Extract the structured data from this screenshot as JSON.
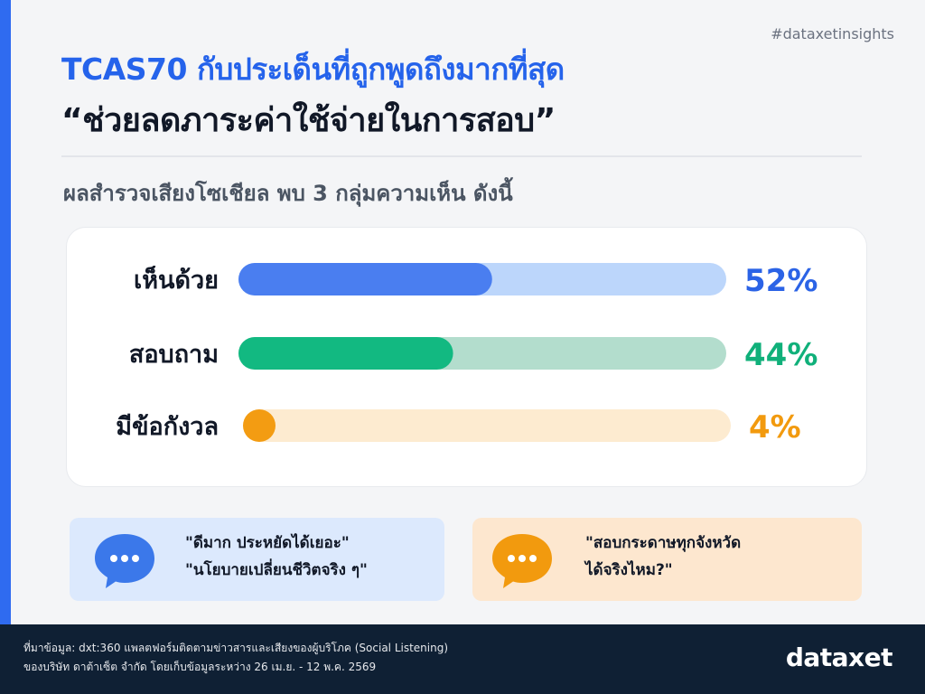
{
  "header": {
    "hashtag": "#dataxetinsights",
    "title_line1": "TCAS70 กับประเด็นที่ถูกพูดถึงมากที่สุด",
    "title_line2": "“ช่วยลดภาระค่าใช้จ่ายในการสอบ”",
    "subtitle": "ผลสำรวจเสียงโซเชียล พบ 3 กลุ่มความเห็น ดังนี้"
  },
  "chart_data": {
    "type": "bar",
    "categories": [
      "เห็นด้วย",
      "สอบถาม",
      "มีข้อกังวล"
    ],
    "values": [
      52,
      44,
      4
    ],
    "value_labels": [
      "52%",
      "44%",
      "4%"
    ],
    "unit": "%",
    "xlim": [
      0,
      100
    ],
    "colors": {
      "fill": [
        "#4a7ef0",
        "#12b981",
        "#f39c12"
      ],
      "track": [
        "#bcd6fb",
        "#b3ddcd",
        "#fdebd0"
      ],
      "label": [
        "#2b63e6",
        "#10b07a",
        "#f29a0e"
      ]
    }
  },
  "quotes": [
    {
      "lines": [
        "\"ดีมาก ประหยัดได้เยอะ\"",
        "\"นโยบายเปลี่ยนชีวิตจริง ๆ\""
      ],
      "bubble_color": "#3b78ea"
    },
    {
      "lines": [
        "\"สอบกระดาษทุกจังหวัด",
        "ได้จริงไหม?\""
      ],
      "bubble_color": "#f29a0e"
    }
  ],
  "footer": {
    "source_line1": "ที่มาข้อมูล: dxt:360 แพลตฟอร์มติดตามข่าวสารและเสียงของผู้บริโภค (Social Listening)",
    "source_line2": "ของบริษัท ดาต้าเซ็ต จำกัด โดยเก็บข้อมูลระหว่าง 26 เม.ย. - 12 พ.ค. 2569",
    "logo": "dataxet"
  }
}
